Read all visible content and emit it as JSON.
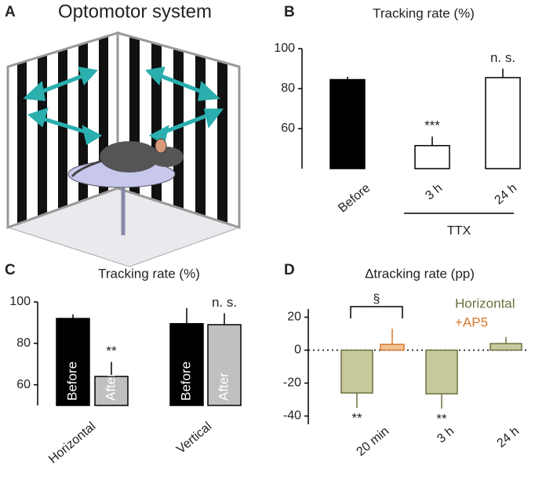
{
  "illustration": {
    "panel_label": "A",
    "title": "Optomotor system"
  },
  "chart_data": [
    {
      "type": "bar",
      "panel_label": "B",
      "title": "Tracking rate (%)",
      "categories": [
        "Before",
        "3 h",
        "24 h"
      ],
      "series": [
        {
          "values": [
            84.5,
            51.5,
            85.5
          ],
          "errors": [
            1.5,
            4.5,
            4.5
          ],
          "colors": [
            "#000000",
            "#ffffff",
            "#ffffff"
          ],
          "value_annotations": [
            null,
            "***",
            "n. s."
          ]
        }
      ],
      "group_label": "TTX",
      "ylim": [
        40,
        100
      ],
      "yticks": [
        60,
        80,
        100
      ]
    },
    {
      "type": "bar",
      "panel_label": "C",
      "title": "Tracking rate (%)",
      "categories": [
        "Horizontal",
        "Vertical"
      ],
      "series": [
        {
          "name": "Before",
          "color": "#000000",
          "values": [
            92,
            89.5
          ],
          "errors": [
            2,
            7.5
          ],
          "value_annotations": [
            null,
            null
          ]
        },
        {
          "name": "After",
          "color": "#c0c0c0",
          "values": [
            64,
            89
          ],
          "errors": [
            7,
            5.5
          ],
          "value_annotations": [
            "**",
            "n. s."
          ]
        }
      ],
      "names_in_bars": true,
      "ylim": [
        50,
        100
      ],
      "yticks": [
        60,
        80,
        100
      ]
    },
    {
      "type": "bar",
      "panel_label": "D",
      "title": "Δtracking rate (pp)",
      "categories": [
        "20 min",
        "3 h",
        "24 h"
      ],
      "series": [
        {
          "name": "Horizontal",
          "color": "#c8c99c",
          "edge_color": "#6e7040",
          "values": [
            -26,
            -26.5,
            4
          ],
          "errors": [
            9,
            9,
            4
          ],
          "value_annotations": [
            "**",
            "**",
            null
          ]
        },
        {
          "name": "+AP5",
          "color": "#f2c294",
          "edge_color": "#d9782a",
          "values": [
            3.5,
            null,
            null
          ],
          "errors": [
            9.5,
            null,
            null
          ],
          "value_annotations": [
            null,
            null,
            null
          ]
        }
      ],
      "bracket_label": "§",
      "zero_line": true,
      "legend": "top-right",
      "ylim": [
        -45,
        25
      ],
      "yticks": [
        -40,
        -20,
        0,
        20
      ]
    }
  ]
}
